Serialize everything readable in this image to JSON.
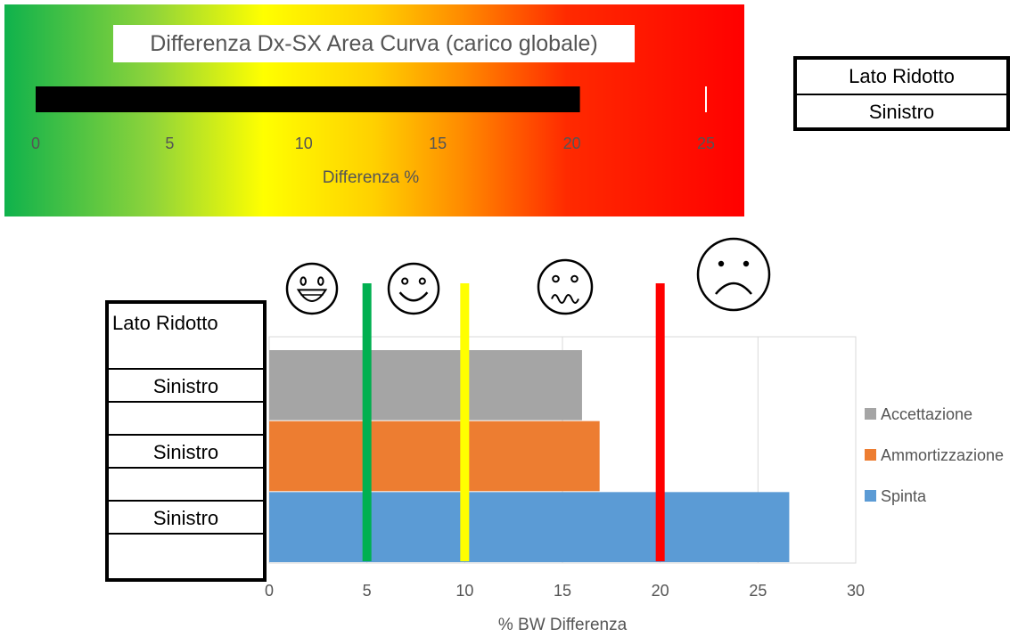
{
  "gauge": {
    "title": "Differenza Dx-SX Area Curva (carico globale)",
    "xlabel": "Differenza %",
    "ticks": [
      "0",
      "5",
      "10",
      "15",
      "20",
      "25"
    ],
    "xlim": [
      0,
      25
    ],
    "value": 20.3
  },
  "side_box_top": {
    "header": "Lato Ridotto",
    "value": "Sinistro"
  },
  "side_box_left": {
    "header": "Lato Ridotto",
    "rows": [
      "Sinistro",
      "",
      "Sinistro",
      "",
      "Sinistro",
      ""
    ]
  },
  "chart_data": [
    {
      "type": "bar",
      "orientation": "horizontal",
      "categories": [
        "Accettazione",
        "Ammortizzazione",
        "Spinta"
      ],
      "values": [
        16.0,
        16.9,
        26.6
      ],
      "colors": [
        "#a5a5a5",
        "#ed7d31",
        "#5b9bd5"
      ],
      "xlabel": "% BW Differenza",
      "xlim": [
        0,
        30
      ],
      "xticks": [
        "0",
        "5",
        "10",
        "15",
        "20",
        "25",
        "30"
      ],
      "grid": true,
      "legend": "right",
      "thresholds": [
        {
          "value": 5,
          "color": "#00b050",
          "icon": "laughing-face-icon"
        },
        {
          "value": 10,
          "color": "#ffff00",
          "icon": "smiling-face-icon"
        },
        {
          "value": 20,
          "color": "#ff0000",
          "icon": "frowning-face-icon"
        }
      ],
      "extra_icons": [
        "wavy-mouth-face-icon"
      ]
    }
  ]
}
